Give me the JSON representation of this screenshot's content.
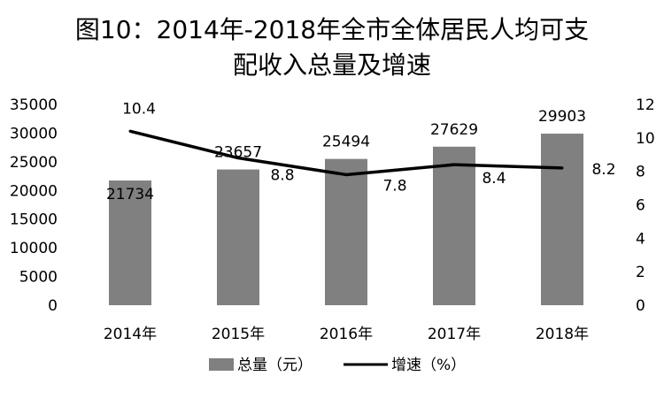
{
  "chart_data": {
    "type": "bar+line",
    "title_line1": "图10：2014年-2018年全市全体居民人均可支",
    "title_line2": "配收入总量及增速",
    "categories": [
      "2014年",
      "2015年",
      "2016年",
      "2017年",
      "2018年"
    ],
    "series": [
      {
        "name": "总量（元）",
        "type": "bar",
        "axis": "left",
        "values": [
          21734,
          23657,
          25494,
          27629,
          29903
        ],
        "color": "#808080"
      },
      {
        "name": "增速（%）",
        "type": "line",
        "axis": "right",
        "values": [
          10.4,
          8.8,
          7.8,
          8.4,
          8.2
        ],
        "color": "#000000"
      }
    ],
    "y_left": {
      "min": 0,
      "max": 35000,
      "ticks": [
        "0",
        "5000",
        "10000",
        "15000",
        "20000",
        "25000",
        "30000",
        "35000"
      ]
    },
    "y_right": {
      "min": 0,
      "max": 12,
      "ticks": [
        "0",
        "2",
        "4",
        "6",
        "8",
        "10",
        "12"
      ]
    },
    "bar_labels": [
      "21734",
      "23657",
      "25494",
      "27629",
      "29903"
    ],
    "line_labels": [
      "10.4",
      "8.8",
      "7.8",
      "8.4",
      "8.2"
    ],
    "legend_placement": "bottom",
    "grid": false
  }
}
